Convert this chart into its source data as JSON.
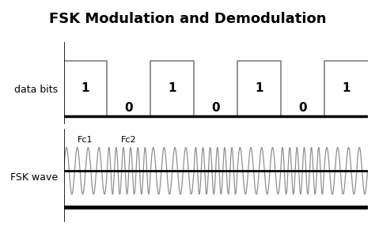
{
  "title": "FSK Modulation and Demodulation",
  "title_bg_color": "#6495ED",
  "title_fontsize": 13,
  "title_fontweight": "bold",
  "bg_color": "#ffffff",
  "bits": [
    1,
    0,
    1,
    0,
    1,
    0,
    1
  ],
  "bit_labels": [
    "1",
    "0",
    "1",
    "0",
    "1",
    "0",
    "1"
  ],
  "data_bits_label": "data bits",
  "fsk_wave_label": "FSK wave",
  "fc1_label": "Fc1",
  "fc2_label": "Fc2",
  "fc1_freq": 4,
  "fc2_freq": 6,
  "axis_color": "#000000",
  "wave_color": "#909090",
  "digital_wave_color": "#808080",
  "label_fontsize": 9,
  "bit_label_fontsize": 11
}
